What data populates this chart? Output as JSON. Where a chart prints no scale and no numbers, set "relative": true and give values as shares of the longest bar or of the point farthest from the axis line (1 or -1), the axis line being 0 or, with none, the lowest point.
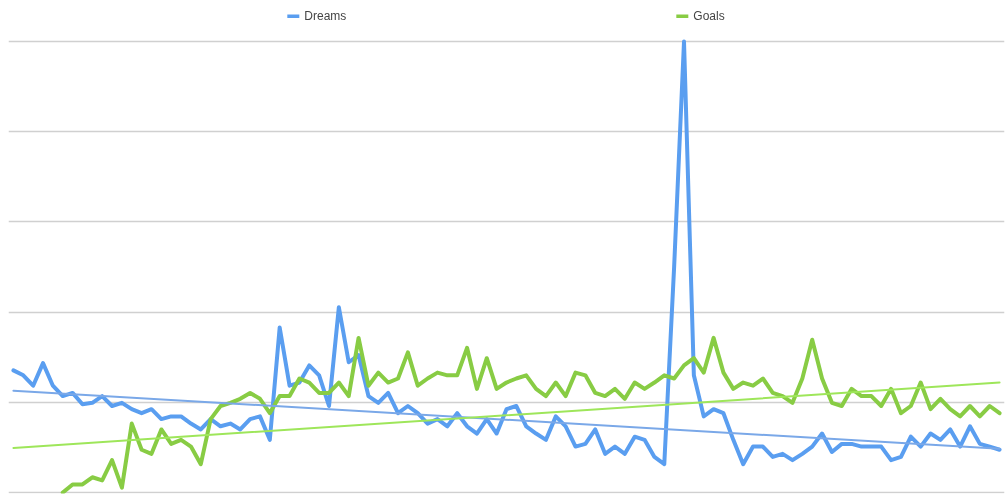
{
  "chart_data": {
    "type": "line",
    "relative": true,
    "grid": "y",
    "legend": "top",
    "line_style": "solid",
    "marker": "none",
    "categories": [
      null,
      null,
      null,
      null,
      null,
      null,
      null,
      null,
      null,
      null,
      null,
      null,
      null,
      null,
      null,
      null,
      null,
      null,
      null,
      null,
      null,
      null,
      null,
      null,
      null,
      null,
      null,
      null,
      null,
      null,
      null,
      null,
      null,
      null,
      null,
      null,
      null,
      null,
      null,
      null,
      null,
      null,
      null,
      null,
      null,
      null,
      null,
      null,
      null,
      null,
      null,
      null,
      null,
      null,
      null,
      null,
      null,
      null,
      null,
      null,
      null,
      null,
      null,
      null,
      null,
      null,
      null,
      null,
      null,
      null,
      null,
      null,
      null,
      null,
      null,
      null,
      null,
      null,
      null,
      null,
      null,
      null,
      null,
      null,
      null,
      null,
      null,
      null,
      null,
      null,
      null,
      null,
      null,
      null,
      null,
      null,
      null,
      null,
      null,
      null,
      null
    ],
    "series": [
      {
        "name": "Dreams",
        "color": "#5a9ef0",
        "values": [
          0.271,
          0.26,
          0.237,
          0.287,
          0.237,
          0.214,
          0.221,
          0.196,
          0.199,
          0.214,
          0.192,
          0.199,
          0.185,
          0.176,
          0.185,
          0.163,
          0.169,
          0.169,
          0.153,
          0.14,
          0.163,
          0.147,
          0.153,
          0.14,
          0.163,
          0.169,
          0.117,
          0.366,
          0.237,
          0.244,
          0.282,
          0.26,
          0.192,
          0.411,
          0.289,
          0.305,
          0.214,
          0.199,
          0.221,
          0.176,
          0.192,
          0.176,
          0.153,
          0.163,
          0.147,
          0.176,
          0.147,
          0.131,
          0.163,
          0.131,
          0.185,
          0.192,
          0.147,
          0.131,
          0.117,
          0.169,
          0.147,
          0.102,
          0.108,
          0.14,
          0.086,
          0.102,
          0.086,
          0.124,
          0.117,
          0.079,
          0.063,
          0.501,
          1,
          0.26,
          0.169,
          0.185,
          0.176,
          0.117,
          0.063,
          0.102,
          0.102,
          0.079,
          0.086,
          0.072,
          0.086,
          0.102,
          0.131,
          0.09,
          0.108,
          0.108,
          0.102,
          0.102,
          0.102,
          0.072,
          0.079,
          0.124,
          0.102,
          0.131,
          0.117,
          0.14,
          0.102,
          0.147,
          0.108,
          0.102,
          0.095
        ]
      },
      {
        "name": "Goals",
        "color": "#88cc44",
        "values": [
          null,
          null,
          null,
          null,
          null,
          0,
          0.018,
          0.018,
          0.034,
          0.027,
          0.072,
          0.011,
          0.153,
          0.095,
          0.086,
          0.14,
          0.108,
          0.117,
          0.102,
          0.063,
          0.163,
          0.192,
          0.199,
          0.208,
          0.221,
          0.208,
          0.176,
          0.214,
          0.214,
          0.253,
          0.244,
          0.221,
          0.221,
          0.244,
          0.214,
          0.343,
          0.237,
          0.266,
          0.244,
          0.253,
          0.311,
          0.237,
          0.253,
          0.266,
          0.26,
          0.26,
          0.321,
          0.23,
          0.298,
          0.23,
          0.244,
          0.253,
          0.26,
          0.23,
          0.214,
          0.244,
          0.214,
          0.266,
          0.26,
          0.221,
          0.214,
          0.23,
          0.208,
          0.244,
          0.23,
          0.244,
          0.26,
          0.253,
          0.282,
          0.298,
          0.266,
          0.343,
          0.266,
          0.23,
          0.244,
          0.237,
          0.253,
          0.221,
          0.214,
          0.199,
          0.253,
          0.339,
          0.253,
          0.199,
          0.192,
          0.23,
          0.214,
          0.214,
          0.192,
          0.23,
          0.176,
          0.192,
          0.244,
          0.185,
          0.208,
          0.185,
          0.169,
          0.192,
          0.169,
          0.192,
          0.176
        ]
      },
      {
        "type": "line",
        "color": "#7aa8e8",
        "values": [
          0.226,
          null,
          null,
          null,
          null,
          null,
          null,
          null,
          null,
          null,
          null,
          null,
          null,
          null,
          null,
          null,
          null,
          null,
          null,
          null,
          null,
          null,
          null,
          null,
          null,
          null,
          null,
          null,
          null,
          null,
          null,
          null,
          null,
          null,
          null,
          null,
          null,
          null,
          null,
          null,
          null,
          null,
          null,
          null,
          null,
          null,
          null,
          null,
          null,
          null,
          null,
          null,
          null,
          null,
          null,
          null,
          null,
          null,
          null,
          null,
          null,
          null,
          null,
          null,
          null,
          null,
          null,
          null,
          null,
          null,
          null,
          null,
          null,
          null,
          null,
          null,
          null,
          null,
          null,
          null,
          null,
          null,
          null,
          null,
          null,
          null,
          null,
          null,
          null,
          null,
          null,
          null,
          null,
          null,
          null,
          null,
          null,
          null,
          null,
          null,
          0.097
        ]
      },
      {
        "type": "line",
        "color": "#9ee65a",
        "values": [
          0.099,
          null,
          null,
          null,
          null,
          null,
          null,
          null,
          null,
          null,
          null,
          null,
          null,
          null,
          null,
          null,
          null,
          null,
          null,
          null,
          null,
          null,
          null,
          null,
          null,
          null,
          null,
          null,
          null,
          null,
          null,
          null,
          null,
          null,
          null,
          null,
          null,
          null,
          null,
          null,
          null,
          null,
          null,
          null,
          null,
          null,
          null,
          null,
          null,
          null,
          null,
          null,
          null,
          null,
          null,
          null,
          null,
          null,
          null,
          null,
          null,
          null,
          null,
          null,
          null,
          null,
          null,
          null,
          null,
          null,
          null,
          null,
          null,
          null,
          null,
          null,
          null,
          null,
          null,
          null,
          null,
          null,
          null,
          null,
          null,
          null,
          null,
          null,
          null,
          null,
          null,
          null,
          null,
          null,
          null,
          null,
          null,
          null,
          null,
          null,
          0.244
        ]
      }
    ]
  }
}
